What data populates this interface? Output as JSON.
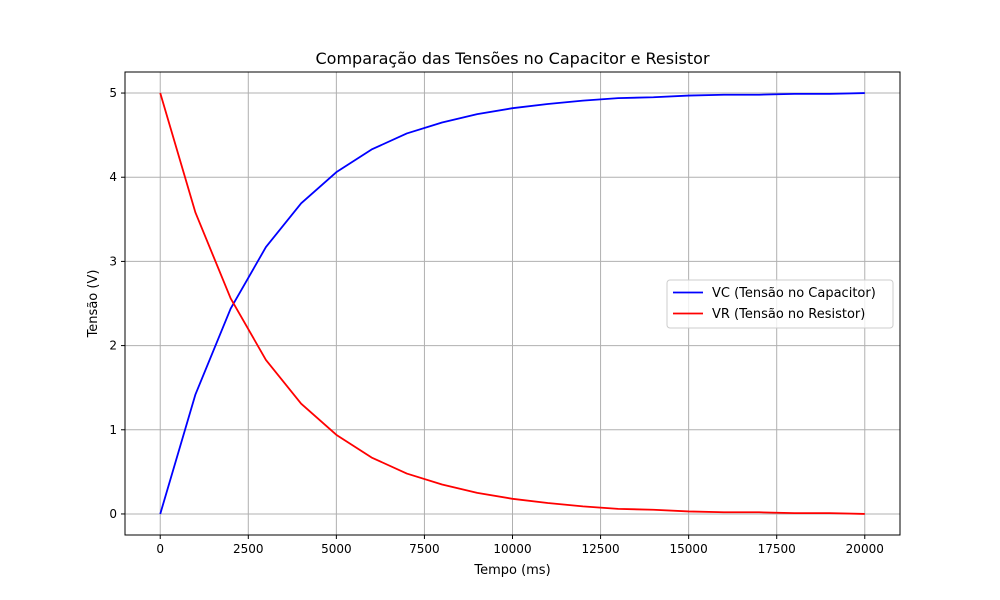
{
  "chart_data": {
    "type": "line",
    "title": "Comparação das Tensões no Capacitor e Resistor",
    "xlabel": "Tempo (ms)",
    "ylabel": "Tensão (V)",
    "xlim": [
      -1000,
      21000
    ],
    "ylim": [
      -0.25,
      5.25
    ],
    "xticks": [
      0,
      2500,
      5000,
      7500,
      10000,
      12500,
      15000,
      17500,
      20000
    ],
    "xtick_labels": [
      "0",
      "2500",
      "5000",
      "7500",
      "10000",
      "12500",
      "15000",
      "17500",
      "20000"
    ],
    "yticks": [
      0,
      1,
      2,
      3,
      4,
      5
    ],
    "ytick_labels": [
      "0",
      "1",
      "2",
      "3",
      "4",
      "5"
    ],
    "grid": true,
    "legend_position": "center-right",
    "x": [
      0,
      1000,
      2000,
      3000,
      4000,
      5000,
      6000,
      7000,
      8000,
      9000,
      10000,
      11000,
      12000,
      13000,
      14000,
      15000,
      16000,
      17000,
      18000,
      19000,
      20000
    ],
    "series": [
      {
        "name": "VC (Tensão no Capacitor)",
        "color": "#0000ff",
        "values": [
          0,
          1.42,
          2.44,
          3.17,
          3.69,
          4.06,
          4.33,
          4.52,
          4.65,
          4.75,
          4.82,
          4.87,
          4.91,
          4.94,
          4.95,
          4.97,
          4.98,
          4.98,
          4.99,
          4.99,
          5.0
        ]
      },
      {
        "name": "VR (Tensão no Resistor)",
        "color": "#ff0000",
        "values": [
          5.0,
          3.58,
          2.56,
          1.83,
          1.31,
          0.94,
          0.67,
          0.48,
          0.35,
          0.25,
          0.18,
          0.13,
          0.09,
          0.06,
          0.05,
          0.03,
          0.02,
          0.02,
          0.01,
          0.01,
          0.0
        ]
      }
    ]
  }
}
